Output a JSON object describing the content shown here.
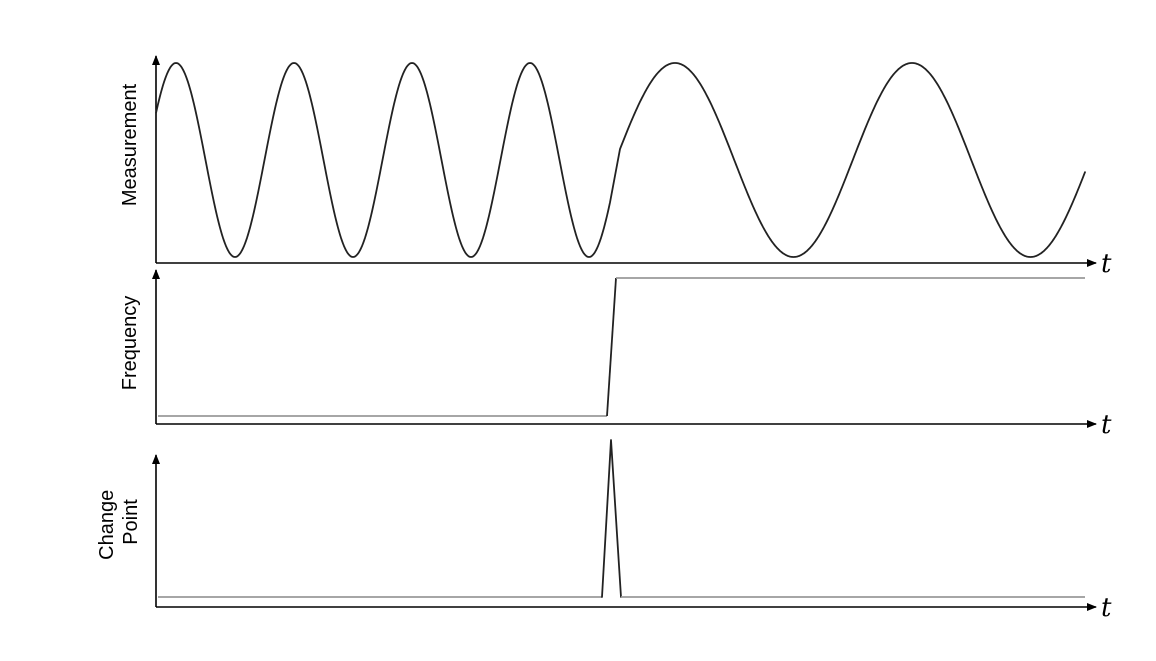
{
  "panels": [
    {
      "id": "measurement",
      "ylabel_lines": [
        "Measurement"
      ],
      "xlabel": "t"
    },
    {
      "id": "frequency",
      "ylabel_lines": [
        "Frequency"
      ],
      "xlabel": "t"
    },
    {
      "id": "change-point",
      "ylabel_lines": [
        "Change",
        "Point"
      ],
      "xlabel": "t"
    }
  ],
  "colors": {
    "axis": "#000000",
    "signal": "#222222",
    "baseline": "#9a9a9a"
  }
}
